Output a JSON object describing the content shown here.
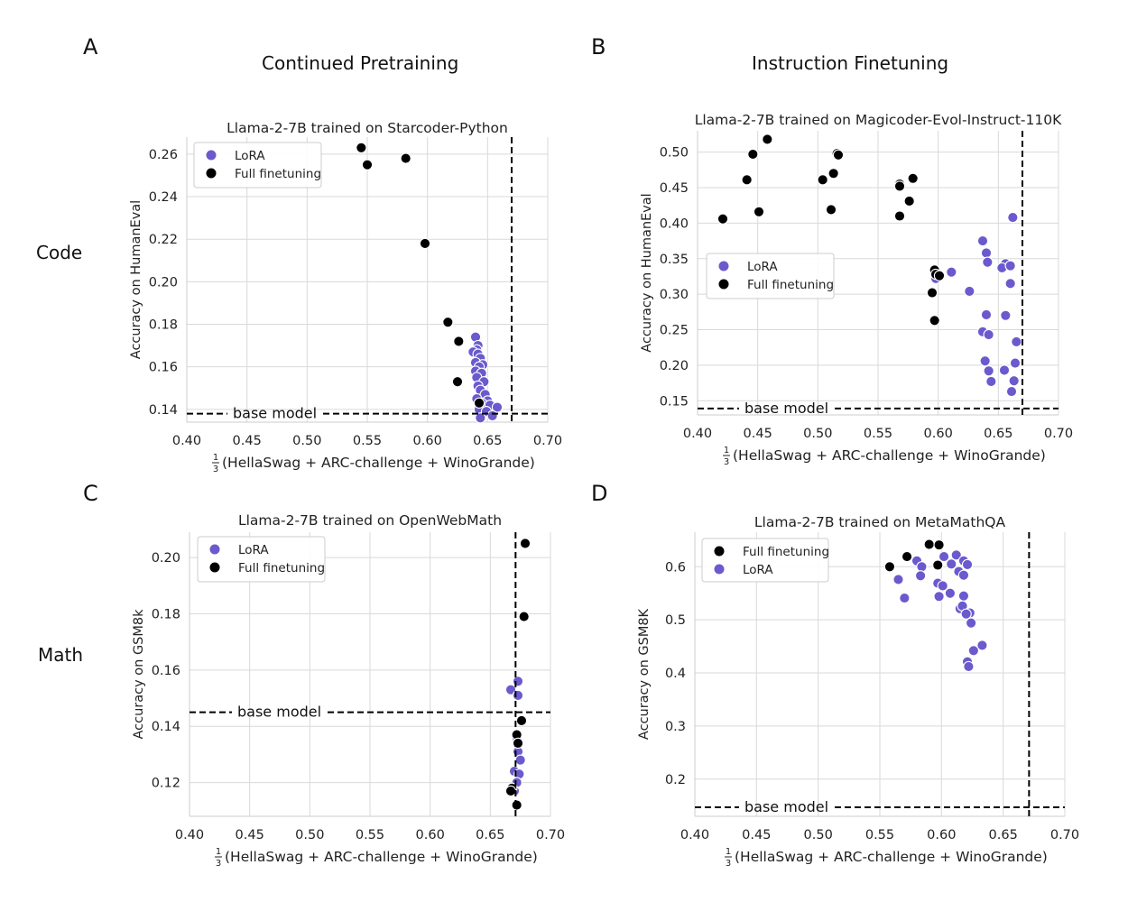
{
  "labels": {
    "panel_a": "A",
    "panel_b": "B",
    "panel_c": "C",
    "panel_d": "D",
    "col_left": "Continued Pretraining",
    "col_right": "Instruction Finetuning",
    "row_top": "Code",
    "row_bottom": "Math"
  },
  "colors": {
    "lora": "#6a5acd",
    "full": "#000000",
    "grid": "#d9d9d9"
  },
  "chart_data": [
    {
      "type": "scatter",
      "title": "Llama-2-7B trained on Starcoder-Python",
      "xlabel_frac": "1/3",
      "xlabel": "(HellaSwag + ARC-challenge + WinoGrande)",
      "ylabel": "Accuracy on HumanEval",
      "xlim": [
        0.4,
        0.7
      ],
      "ylim": [
        0.134,
        0.268
      ],
      "xticks": [
        "0.40",
        "0.45",
        "0.50",
        "0.55",
        "0.60",
        "0.65",
        "0.70"
      ],
      "yticks": [
        "0.14",
        "0.16",
        "0.18",
        "0.20",
        "0.22",
        "0.24",
        "0.26"
      ],
      "grid": true,
      "legend_position": "top-left",
      "legend": [
        "LoRA",
        "Full finetuning"
      ],
      "base_model": {
        "label": "base model",
        "y": 0.138
      },
      "vline": 0.67,
      "series": [
        {
          "name": "LoRA",
          "points": [
            [
              0.64,
              0.174
            ],
            [
              0.642,
              0.17
            ],
            [
              0.641,
              0.168
            ],
            [
              0.638,
              0.167
            ],
            [
              0.642,
              0.166
            ],
            [
              0.644,
              0.164
            ],
            [
              0.64,
              0.162
            ],
            [
              0.646,
              0.161
            ],
            [
              0.643,
              0.16
            ],
            [
              0.64,
              0.158
            ],
            [
              0.645,
              0.157
            ],
            [
              0.641,
              0.155
            ],
            [
              0.647,
              0.153
            ],
            [
              0.642,
              0.151
            ],
            [
              0.644,
              0.149
            ],
            [
              0.648,
              0.147
            ],
            [
              0.641,
              0.145
            ],
            [
              0.65,
              0.144
            ],
            [
              0.645,
              0.143
            ],
            [
              0.652,
              0.142
            ],
            [
              0.658,
              0.141
            ],
            [
              0.643,
              0.14
            ],
            [
              0.649,
              0.139
            ],
            [
              0.654,
              0.137
            ],
            [
              0.644,
              0.136
            ]
          ]
        },
        {
          "name": "Full finetuning",
          "points": [
            [
              0.545,
              0.263
            ],
            [
              0.55,
              0.255
            ],
            [
              0.582,
              0.258
            ],
            [
              0.598,
              0.218
            ],
            [
              0.617,
              0.181
            ],
            [
              0.626,
              0.172
            ],
            [
              0.625,
              0.153
            ],
            [
              0.643,
              0.143
            ]
          ]
        }
      ]
    },
    {
      "type": "scatter",
      "title": "Llama-2-7B trained on Magicoder-Evol-Instruct-110K",
      "xlabel_frac": "1/3",
      "xlabel": "(HellaSwag + ARC-challenge + WinoGrande)",
      "ylabel": "Accuracy on HumanEval",
      "xlim": [
        0.4,
        0.7
      ],
      "ylim": [
        0.13,
        0.53
      ],
      "xticks": [
        "0.40",
        "0.45",
        "0.50",
        "0.55",
        "0.60",
        "0.65",
        "0.70"
      ],
      "yticks": [
        "0.15",
        "0.20",
        "0.25",
        "0.30",
        "0.35",
        "0.40",
        "0.45",
        "0.50"
      ],
      "grid": true,
      "legend_position": "center-left",
      "legend": [
        "LoRA",
        "Full finetuning"
      ],
      "base_model": {
        "label": "base model",
        "y": 0.139
      },
      "vline": 0.67,
      "series": [
        {
          "name": "LoRA",
          "points": [
            [
              0.662,
              0.408
            ],
            [
              0.637,
              0.375
            ],
            [
              0.64,
              0.358
            ],
            [
              0.641,
              0.345
            ],
            [
              0.656,
              0.343
            ],
            [
              0.653,
              0.337
            ],
            [
              0.66,
              0.34
            ],
            [
              0.66,
              0.315
            ],
            [
              0.611,
              0.331
            ],
            [
              0.598,
              0.322
            ],
            [
              0.626,
              0.304
            ],
            [
              0.64,
              0.271
            ],
            [
              0.656,
              0.27
            ],
            [
              0.637,
              0.247
            ],
            [
              0.642,
              0.243
            ],
            [
              0.665,
              0.233
            ],
            [
              0.639,
              0.206
            ],
            [
              0.664,
              0.203
            ],
            [
              0.642,
              0.192
            ],
            [
              0.655,
              0.193
            ],
            [
              0.644,
              0.177
            ],
            [
              0.663,
              0.178
            ],
            [
              0.661,
              0.163
            ]
          ]
        },
        {
          "name": "Full finetuning",
          "points": [
            [
              0.458,
              0.518
            ],
            [
              0.446,
              0.497
            ],
            [
              0.441,
              0.461
            ],
            [
              0.451,
              0.416
            ],
            [
              0.421,
              0.406
            ],
            [
              0.516,
              0.498
            ],
            [
              0.517,
              0.496
            ],
            [
              0.513,
              0.47
            ],
            [
              0.504,
              0.461
            ],
            [
              0.511,
              0.419
            ],
            [
              0.579,
              0.463
            ],
            [
              0.568,
              0.455
            ],
            [
              0.568,
              0.452
            ],
            [
              0.576,
              0.431
            ],
            [
              0.568,
              0.41
            ],
            [
              0.597,
              0.334
            ],
            [
              0.598,
              0.328
            ],
            [
              0.601,
              0.326
            ],
            [
              0.595,
              0.302
            ],
            [
              0.597,
              0.263
            ]
          ]
        }
      ]
    },
    {
      "type": "scatter",
      "title": "Llama-2-7B trained on OpenWebMath",
      "xlabel_frac": "1/3",
      "xlabel": "(HellaSwag + ARC-challenge + WinoGrande)",
      "ylabel": "Accuracy on GSM8k",
      "xlim": [
        0.4,
        0.7
      ],
      "ylim": [
        0.108,
        0.209
      ],
      "xticks": [
        "0.40",
        "0.45",
        "0.50",
        "0.55",
        "0.60",
        "0.65",
        "0.70"
      ],
      "yticks": [
        "0.12",
        "0.14",
        "0.16",
        "0.18",
        "0.20"
      ],
      "grid": true,
      "legend_position": "top-left",
      "legend": [
        "LoRA",
        "Full finetuning"
      ],
      "base_model": {
        "label": "base model",
        "y": 0.145
      },
      "vline": 0.671,
      "series": [
        {
          "name": "LoRA",
          "points": [
            [
              0.673,
              0.156
            ],
            [
              0.667,
              0.153
            ],
            [
              0.673,
              0.151
            ],
            [
              0.672,
              0.136
            ],
            [
              0.673,
              0.131
            ],
            [
              0.675,
              0.128
            ],
            [
              0.67,
              0.124
            ],
            [
              0.674,
              0.123
            ],
            [
              0.672,
              0.12
            ],
            [
              0.668,
              0.118
            ],
            [
              0.67,
              0.117
            ]
          ]
        },
        {
          "name": "Full finetuning",
          "points": [
            [
              0.679,
              0.205
            ],
            [
              0.678,
              0.179
            ],
            [
              0.676,
              0.142
            ],
            [
              0.672,
              0.137
            ],
            [
              0.673,
              0.134
            ],
            [
              0.668,
              0.118
            ],
            [
              0.667,
              0.117
            ],
            [
              0.672,
              0.112
            ]
          ]
        }
      ]
    },
    {
      "type": "scatter",
      "title": "Llama-2-7B trained on MetaMathQA",
      "xlabel_frac": "1/3",
      "xlabel": "(HellaSwag + ARC-challenge + WinoGrande)",
      "ylabel": "Accuracy on GSM8K",
      "xlim": [
        0.4,
        0.7
      ],
      "ylim": [
        0.13,
        0.665
      ],
      "xticks": [
        "0.40",
        "0.45",
        "0.50",
        "0.55",
        "0.60",
        "0.65",
        "0.70"
      ],
      "yticks": [
        "0.2",
        "0.3",
        "0.4",
        "0.5",
        "0.6"
      ],
      "grid": true,
      "legend_position": "top-left",
      "legend": [
        "Full finetuning",
        "LoRA"
      ],
      "base_model": {
        "label": "base model",
        "y": 0.147
      },
      "vline": 0.671,
      "series": [
        {
          "name": "Full finetuning",
          "points": [
            [
              0.59,
              0.642
            ],
            [
              0.598,
              0.641
            ],
            [
              0.572,
              0.619
            ],
            [
              0.558,
              0.6
            ],
            [
              0.597,
              0.603
            ]
          ]
        },
        {
          "name": "LoRA",
          "points": [
            [
              0.565,
              0.576
            ],
            [
              0.57,
              0.541
            ],
            [
              0.58,
              0.611
            ],
            [
              0.584,
              0.6
            ],
            [
              0.583,
              0.583
            ],
            [
              0.602,
              0.619
            ],
            [
              0.612,
              0.622
            ],
            [
              0.608,
              0.605
            ],
            [
              0.618,
              0.611
            ],
            [
              0.621,
              0.604
            ],
            [
              0.614,
              0.591
            ],
            [
              0.618,
              0.584
            ],
            [
              0.597,
              0.569
            ],
            [
              0.601,
              0.564
            ],
            [
              0.607,
              0.55
            ],
            [
              0.618,
              0.545
            ],
            [
              0.598,
              0.544
            ],
            [
              0.615,
              0.521
            ],
            [
              0.617,
              0.526
            ],
            [
              0.623,
              0.513
            ],
            [
              0.62,
              0.511
            ],
            [
              0.624,
              0.494
            ],
            [
              0.633,
              0.452
            ],
            [
              0.626,
              0.442
            ],
            [
              0.621,
              0.421
            ],
            [
              0.622,
              0.412
            ]
          ]
        }
      ]
    }
  ]
}
